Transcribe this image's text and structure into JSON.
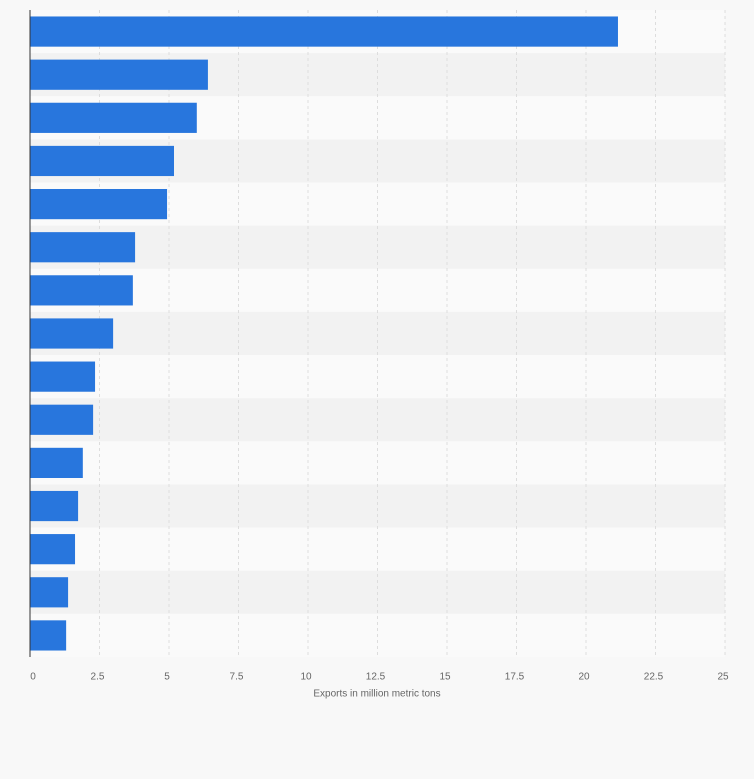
{
  "chart_data": {
    "type": "bar",
    "orientation": "horizontal",
    "xlabel": "Exports in million metric tons",
    "categories": [
      null,
      null,
      null,
      null,
      null,
      null,
      null,
      null,
      null,
      null,
      null,
      null,
      null,
      null,
      null
    ],
    "values": [
      21.15,
      6.4,
      6.0,
      5.18,
      4.93,
      3.78,
      3.7,
      2.99,
      2.34,
      2.27,
      1.9,
      1.73,
      1.62,
      1.37,
      1.3
    ],
    "color": "#2876dd",
    "xlim": [
      0,
      25
    ],
    "xticks": [
      0,
      2.5,
      5,
      7.5,
      10,
      12.5,
      15,
      17.5,
      20,
      22.5,
      25
    ],
    "grid": true
  }
}
